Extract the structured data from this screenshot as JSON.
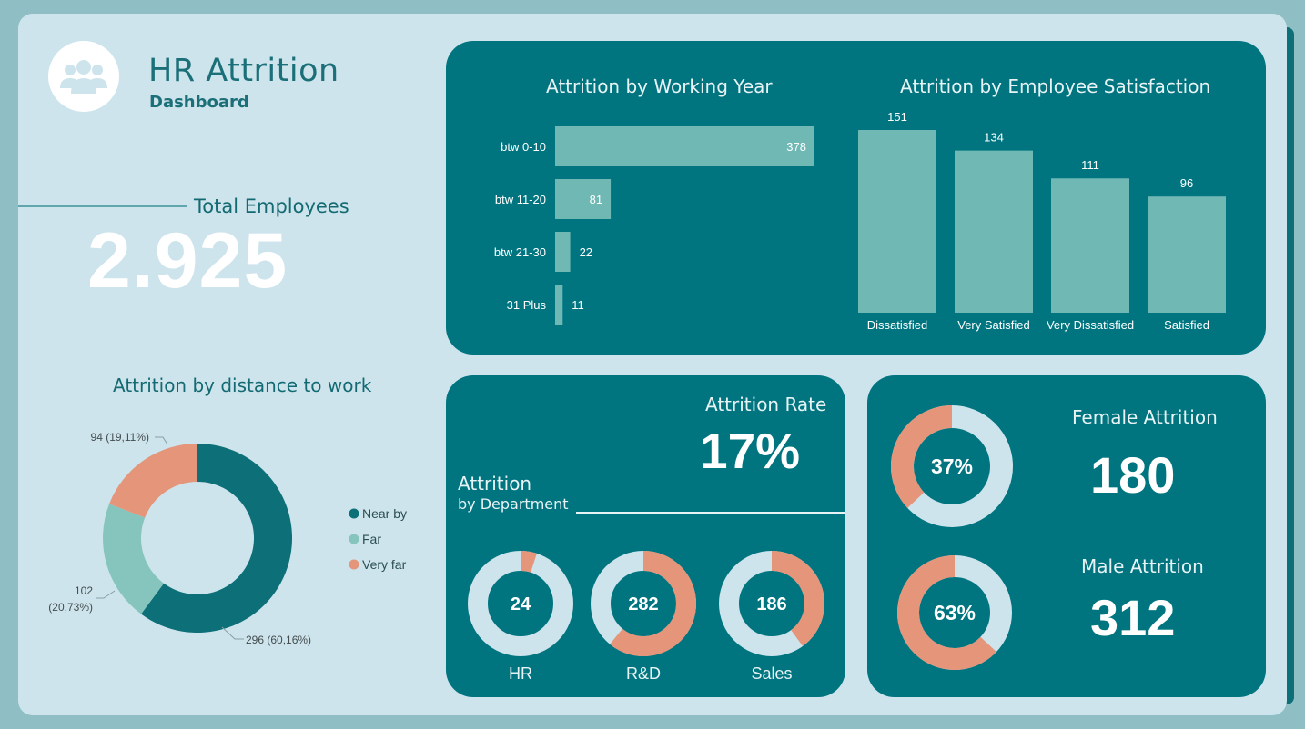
{
  "header": {
    "title": "HR Attrition",
    "subtitle": "Dashboard",
    "logo_icon": "users-group-icon"
  },
  "total_employees": {
    "label": "Total Employees",
    "value": "2.925"
  },
  "attrition_rate": {
    "label": "Attrition Rate",
    "value": "17%"
  },
  "department_section": {
    "title": "Attrition",
    "subtitle": "by Department"
  },
  "gender": {
    "female_label": "Female Attrition",
    "female_value": "180",
    "male_label": "Male Attrition",
    "male_value": "312"
  },
  "colors": {
    "teal_dark": "#0d6f77",
    "teal_light": "#6fb8b4",
    "salmon": "#e4957a",
    "pale": "#cde4ec",
    "panel": "#007580"
  },
  "chart_data": [
    {
      "id": "working_year",
      "type": "bar",
      "orientation": "horizontal",
      "title": "Attrition by Working Year",
      "categories": [
        "btw 0-10",
        "btw 11-20",
        "btw 21-30",
        "31 Plus"
      ],
      "values": [
        378,
        81,
        22,
        11
      ]
    },
    {
      "id": "satisfaction",
      "type": "bar",
      "title": "Attrition by Employee Satisfaction",
      "categories": [
        "Dissatisfied",
        "Very Satisfied",
        "Very Dissatisfied",
        "Satisfied"
      ],
      "values": [
        151,
        134,
        111,
        96
      ]
    },
    {
      "id": "distance",
      "type": "pie",
      "donut": true,
      "title": "Attrition by distance to work",
      "categories": [
        "Near by",
        "Far",
        "Very far"
      ],
      "values": [
        296,
        102,
        94
      ],
      "labels": [
        "296 (60,16%)",
        "102 (20,73%)",
        "94 (19,11%)"
      ],
      "colors": [
        "#0d6f77",
        "#86c5be",
        "#e4957a"
      ],
      "legend": "right"
    },
    {
      "id": "department",
      "type": "pie",
      "donut": true,
      "categories": [
        "HR",
        "R&D",
        "Sales"
      ],
      "values": [
        24,
        282,
        186
      ],
      "fraction_of_department": [
        0.05,
        0.61,
        0.4
      ],
      "colors": [
        "#e4957a",
        "#cde4ec"
      ]
    },
    {
      "id": "gender",
      "type": "pie",
      "donut": true,
      "categories": [
        "Female",
        "Male"
      ],
      "values": [
        37,
        63
      ],
      "labels": [
        "37%",
        "63%"
      ],
      "colors": [
        "#e4957a",
        "#cde4ec"
      ]
    }
  ]
}
